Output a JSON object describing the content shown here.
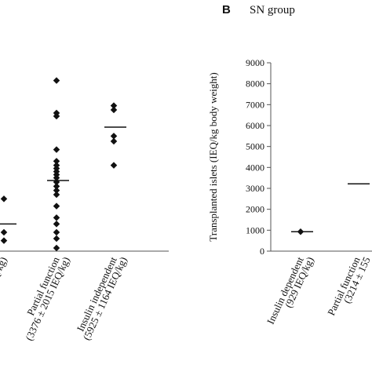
{
  "chart_data": [
    {
      "type": "strip",
      "categories": [
        [
          "EQ/kg)"
        ],
        [
          "Partial function",
          "(3376 ± 2015 IEQ/kg)"
        ],
        [
          "Insulin independent",
          "(5925 ± 1164 IEQ/kg)"
        ]
      ],
      "values": [
        [
          2500,
          900,
          500
        ],
        [
          8150,
          6600,
          6450,
          4850,
          4300,
          4100,
          3950,
          3800,
          3650,
          3500,
          3300,
          3100,
          2900,
          2700,
          2150,
          1600,
          1300,
          900,
          600,
          150
        ],
        [
          6950,
          6750,
          5500,
          5250,
          4100
        ]
      ],
      "means": [
        1300,
        3376,
        5925
      ],
      "ylim": [
        0,
        9000
      ],
      "color": "#111111"
    },
    {
      "type": "strip",
      "panel_label": "B",
      "title": "SN group",
      "ylabel": "Transplanted islets (IEQ/kg body weight)",
      "categories": [
        [
          "Insulin dependent",
          "(929 IEQ/kg)"
        ],
        [
          "Partial function",
          "(3214 ± 155"
        ]
      ],
      "values": [
        [
          929
        ],
        []
      ],
      "means": [
        929,
        3214
      ],
      "ylim": [
        0,
        9000
      ],
      "yticks": [
        0,
        1000,
        2000,
        3000,
        4000,
        5000,
        6000,
        7000,
        8000,
        9000
      ],
      "color": "#111111"
    }
  ]
}
